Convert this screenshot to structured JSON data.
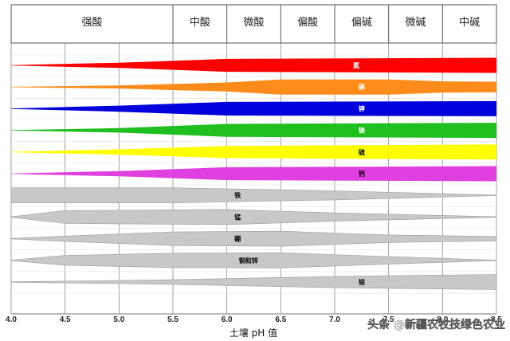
{
  "header": {
    "zones": [
      {
        "label": "强酸",
        "from": 4.0,
        "to": 5.5
      },
      {
        "label": "中酸",
        "from": 5.5,
        "to": 6.0
      },
      {
        "label": "微酸",
        "from": 6.0,
        "to": 6.5
      },
      {
        "label": "偏酸",
        "from": 6.5,
        "to": 7.0
      },
      {
        "label": "偏碱",
        "from": 7.0,
        "to": 7.5
      },
      {
        "label": "微碱",
        "from": 7.5,
        "to": 8.0
      },
      {
        "label": "中碱",
        "from": 8.0,
        "to": 8.5
      }
    ]
  },
  "axis": {
    "title": "土壤 pH 值",
    "ticks": [
      "4.0",
      "4.5",
      "5.0",
      "5.5",
      "6.0",
      "6.5",
      "7.0",
      "7.5",
      "8.0",
      "8.5"
    ],
    "min": 4.0,
    "max": 8.5
  },
  "chart_data": {
    "type": "band",
    "nutrients": [
      {
        "label": "氮",
        "color": "#ff0000",
        "label_color": "#ffffff",
        "label_at": 7.2,
        "profile": [
          [
            4.0,
            0.0
          ],
          [
            5.0,
            0.35
          ],
          [
            6.0,
            0.85
          ],
          [
            8.5,
            1.0
          ]
        ]
      },
      {
        "label": "磷",
        "color": "#ff8c1a",
        "label_color": "#ffffff",
        "label_at": 7.25,
        "profile": [
          [
            4.0,
            0.0
          ],
          [
            5.0,
            0.2
          ],
          [
            6.0,
            0.6
          ],
          [
            6.5,
            1.0
          ],
          [
            7.5,
            1.0
          ],
          [
            8.0,
            0.75
          ],
          [
            8.5,
            0.7
          ]
        ]
      },
      {
        "label": "钾",
        "color": "#0000dd",
        "label_color": "#ffffff",
        "label_at": 7.25,
        "profile": [
          [
            4.0,
            0.0
          ],
          [
            5.0,
            0.4
          ],
          [
            6.0,
            0.9
          ],
          [
            8.5,
            1.0
          ]
        ]
      },
      {
        "label": "镁",
        "color": "#1fbf1f",
        "label_color": "#ffffff",
        "label_at": 7.25,
        "profile": [
          [
            4.0,
            0.0
          ],
          [
            5.0,
            0.3
          ],
          [
            6.0,
            0.85
          ],
          [
            8.5,
            1.0
          ]
        ]
      },
      {
        "label": "硫",
        "color": "#ffff00",
        "label_color": "#000000",
        "label_at": 7.25,
        "profile": [
          [
            4.0,
            0.0
          ],
          [
            5.0,
            0.35
          ],
          [
            6.0,
            0.8
          ],
          [
            8.5,
            1.0
          ]
        ]
      },
      {
        "label": "钙",
        "color": "#e040e0",
        "label_color": "#000000",
        "label_at": 7.25,
        "profile": [
          [
            4.0,
            0.0
          ],
          [
            5.0,
            0.35
          ],
          [
            6.0,
            0.85
          ],
          [
            8.5,
            1.0
          ]
        ]
      },
      {
        "label": "铁",
        "color": "#c8c8c8",
        "label_color": "#000000",
        "label_at": 6.1,
        "profile": [
          [
            4.0,
            1.0
          ],
          [
            5.5,
            1.0
          ],
          [
            7.0,
            0.6
          ],
          [
            8.5,
            0.0
          ]
        ]
      },
      {
        "label": "锰",
        "color": "#c8c8c8",
        "label_color": "#000000",
        "label_at": 6.1,
        "profile": [
          [
            4.0,
            0.0
          ],
          [
            4.5,
            0.85
          ],
          [
            6.0,
            1.0
          ],
          [
            7.0,
            0.55
          ],
          [
            8.5,
            0.0
          ]
        ]
      },
      {
        "label": "硼",
        "color": "#c8c8c8",
        "label_color": "#000000",
        "label_at": 6.1,
        "profile": [
          [
            4.0,
            0.0
          ],
          [
            4.5,
            0.35
          ],
          [
            5.5,
            0.9
          ],
          [
            6.5,
            1.0
          ],
          [
            7.5,
            0.5
          ],
          [
            8.5,
            0.3
          ]
        ]
      },
      {
        "label": "铜和锌",
        "color": "#c8c8c8",
        "label_color": "#000000",
        "label_at": 6.2,
        "profile": [
          [
            4.0,
            0.0
          ],
          [
            4.5,
            0.65
          ],
          [
            5.5,
            0.95
          ],
          [
            6.5,
            1.0
          ],
          [
            7.5,
            0.5
          ],
          [
            8.5,
            0.0
          ]
        ]
      },
      {
        "label": "钼",
        "color": "#c8c8c8",
        "label_color": "#000000",
        "label_at": 7.25,
        "profile": [
          [
            4.0,
            0.0
          ],
          [
            5.5,
            0.3
          ],
          [
            7.0,
            0.75
          ],
          [
            8.5,
            1.0
          ]
        ]
      }
    ]
  },
  "watermark": {
    "text": "头条 @新疆农牧技绿色农业",
    "icon": "at-icon"
  }
}
